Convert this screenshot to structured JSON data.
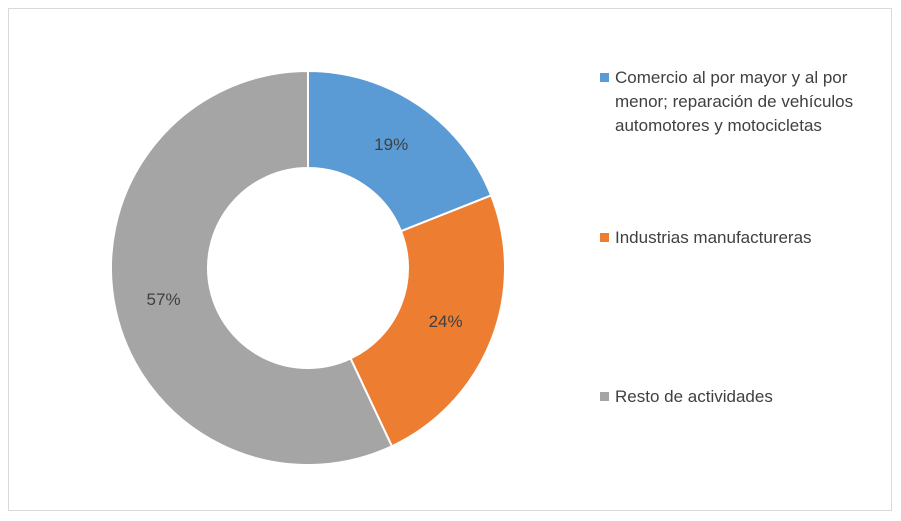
{
  "chart_data": {
    "type": "donut",
    "categories": [
      "Comercio al por mayor y al por menor; reparación de vehículos automotores y motocicletas",
      "Industrias manufactureras",
      "Resto de actividades"
    ],
    "values": [
      19,
      24,
      57
    ],
    "value_labels": [
      "19%",
      "24%",
      "57%"
    ],
    "colors": [
      "#5b9bd5",
      "#ed7d31",
      "#a5a5a5"
    ],
    "legend": "right"
  }
}
